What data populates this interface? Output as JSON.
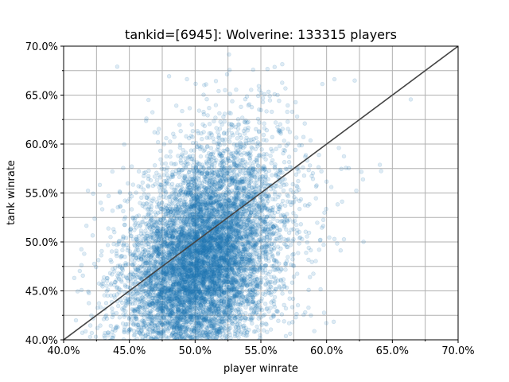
{
  "chart_data": {
    "type": "scatter",
    "title": "tankid=[6945]: Wolverine: 133315 players",
    "xlabel": "player winrate",
    "ylabel": "tank winrate",
    "xlim": [
      0.4,
      0.7
    ],
    "ylim": [
      0.4,
      0.7
    ],
    "x_ticks": [
      0.4,
      0.45,
      0.5,
      0.55,
      0.6,
      0.65,
      0.7
    ],
    "y_ticks": [
      0.4,
      0.45,
      0.5,
      0.55,
      0.6,
      0.65,
      0.7
    ],
    "x_tick_labels": [
      "40.0%",
      "45.0%",
      "50.0%",
      "55.0%",
      "60.0%",
      "65.0%",
      "70.0%"
    ],
    "y_tick_labels": [
      "40.0%",
      "45.0%",
      "50.0%",
      "55.0%",
      "60.0%",
      "65.0%",
      "70.0%"
    ],
    "grid": true,
    "minor_grid_step": 0.025,
    "point_color": "#1f77b4",
    "point_alpha": 0.15,
    "reference_line": {
      "from": [
        0.4,
        0.4
      ],
      "to": [
        0.7,
        0.7
      ],
      "color": "#444444"
    },
    "cloud": {
      "center_x": 0.505,
      "center_y": 0.48,
      "sd_x": 0.028,
      "sd_y": 0.055,
      "correlation": 0.35,
      "sample_points": 9000
    }
  }
}
